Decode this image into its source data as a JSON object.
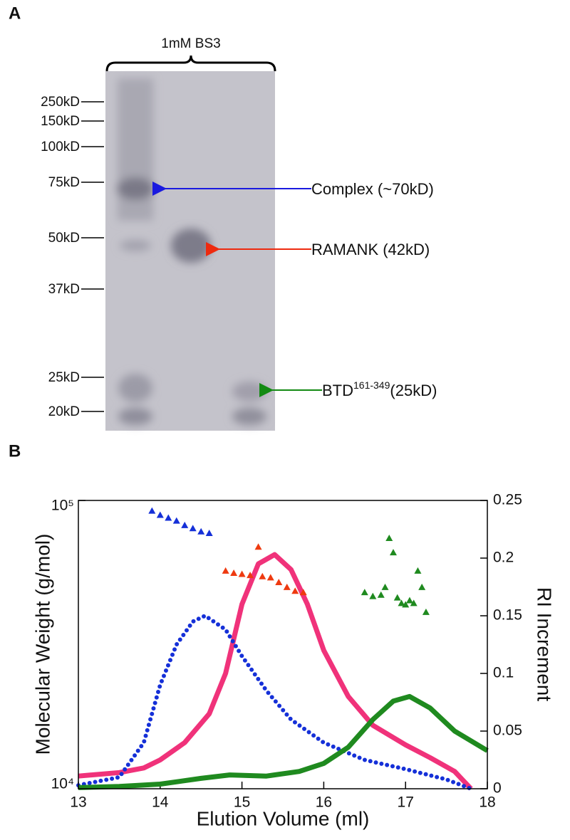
{
  "panel_labels": [
    "A",
    "B"
  ],
  "gel": {
    "lane_label": "1mM BS3",
    "markers": [
      "250kD",
      "150kD",
      "100kD",
      "75kD",
      "50kD",
      "37kD",
      "25kD",
      "20kD"
    ],
    "annotations": [
      {
        "text": "Complex (~70kD)",
        "color": "#1a1adf"
      },
      {
        "text": "RAMANK (42kD)",
        "color": "#ee2a0f"
      },
      {
        "text": "BTD",
        "superscript": "161-349",
        "suffix": "(25kD)",
        "color": "#138a13"
      }
    ]
  },
  "chart_data": {
    "type": "line",
    "xlabel": "Elution Volume (ml)",
    "ylabel": "Molecular Weight (g/mol)",
    "y2label": "RI Increment",
    "xlim": [
      13,
      18
    ],
    "xticks": [
      13,
      14,
      15,
      16,
      17,
      18
    ],
    "ylim": [
      10000,
      100000
    ],
    "log_scale": true,
    "yticks": [
      {
        "value": 10000,
        "label": "10⁴"
      },
      {
        "value": 100000,
        "label": "10⁵"
      }
    ],
    "y2lim": [
      0,
      0.25
    ],
    "y2ticks": [
      0,
      0.05,
      0.1,
      0.15,
      0.2,
      0.25
    ],
    "series": [
      {
        "type": "line",
        "axis": "y2",
        "color": "#f0327a",
        "x": [
          13,
          13.5,
          13.8,
          14,
          14.3,
          14.6,
          14.8,
          15,
          15.2,
          15.4,
          15.6,
          15.8,
          16,
          16.3,
          16.6,
          17,
          17.3,
          17.6,
          17.8
        ],
        "values": [
          0.011,
          0.014,
          0.018,
          0.025,
          0.04,
          0.065,
          0.1,
          0.16,
          0.195,
          0.203,
          0.19,
          0.16,
          0.12,
          0.08,
          0.055,
          0.038,
          0.027,
          0.015,
          0
        ]
      },
      {
        "type": "line",
        "axis": "y2",
        "color": "#1530d8",
        "x": [
          13,
          13.5,
          13.8,
          14,
          14.2,
          14.4,
          14.55,
          14.8,
          15,
          15.3,
          15.6,
          16,
          16.5,
          17,
          17.5,
          17.8
        ],
        "values": [
          0.003,
          0.01,
          0.04,
          0.09,
          0.125,
          0.145,
          0.15,
          0.138,
          0.115,
          0.085,
          0.06,
          0.04,
          0.025,
          0.017,
          0.008,
          0
        ]
      },
      {
        "type": "line",
        "axis": "y2",
        "color": "#1f8a1f",
        "x": [
          13,
          13.5,
          14,
          14.5,
          14.85,
          15.3,
          15.7,
          16,
          16.3,
          16.6,
          16.85,
          17.05,
          17.3,
          17.6,
          18
        ],
        "values": [
          0.001,
          0.002,
          0.004,
          0.009,
          0.012,
          0.011,
          0.015,
          0.022,
          0.036,
          0.06,
          0.076,
          0.08,
          0.07,
          0.05,
          0.033
        ]
      },
      {
        "type": "scatter",
        "color": "#1530d8",
        "x": [
          13.9,
          14,
          14.1,
          14.2,
          14.3,
          14.4,
          14.5,
          14.6
        ],
        "values": [
          92000,
          89000,
          87000,
          85000,
          82000,
          80000,
          78000,
          77000
        ]
      },
      {
        "type": "scatter",
        "color": "#ee3a10",
        "x": [
          14.8,
          14.9,
          15,
          15.1,
          15.2,
          15.25,
          15.35,
          15.45,
          15.55,
          15.65,
          15.75
        ],
        "values": [
          57000,
          56000,
          55500,
          55000,
          69000,
          54500,
          54000,
          52000,
          50000,
          48500,
          48000
        ]
      },
      {
        "type": "scatter",
        "color": "#1f8a1f",
        "x": [
          16.5,
          16.6,
          16.7,
          16.75,
          16.8,
          16.85,
          16.9,
          16.95,
          17,
          17.05,
          17.1,
          17.15,
          17.2,
          17.25
        ],
        "values": [
          48000,
          46500,
          47000,
          50000,
          74000,
          66000,
          46000,
          44000,
          43500,
          45000,
          44000,
          57000,
          50000,
          41000
        ]
      }
    ]
  }
}
